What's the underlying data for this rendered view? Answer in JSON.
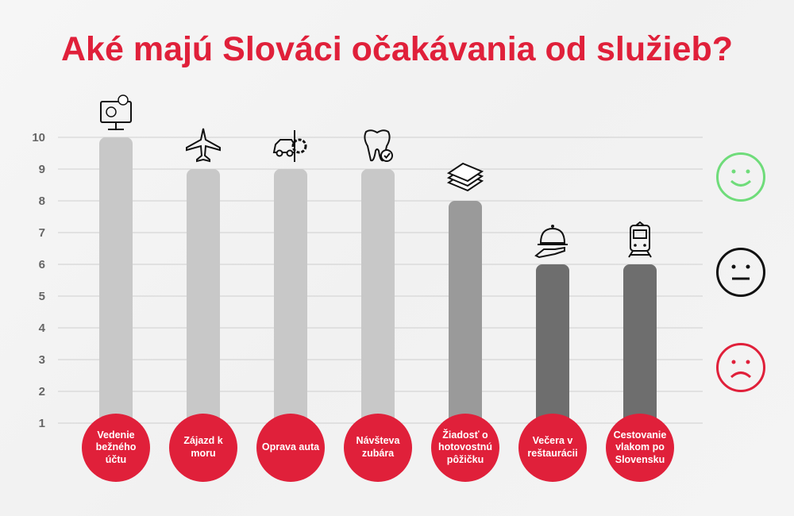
{
  "chart_data": {
    "type": "bar",
    "title": "Aké majú Slováci očakávania od služieb?",
    "categories": [
      "Vedenie bežného účtu",
      "Zájazd k moru",
      "Oprava auta",
      "Návšteva zubára",
      "Žiadosť o hotovostnú pôžičku",
      "Večera v reštaurácii",
      "Cestovanie vlakom po Slovensku"
    ],
    "values": [
      10,
      9,
      9,
      9,
      8,
      6,
      6
    ],
    "icons": [
      "computer-money-icon",
      "airplane-icon",
      "car-gear-icon",
      "tooth-check-icon",
      "money-stack-icon",
      "food-cloche-icon",
      "train-icon"
    ],
    "bar_colors": [
      "#c8c8c8",
      "#c8c8c8",
      "#c8c8c8",
      "#c8c8c8",
      "#9a9a9a",
      "#6e6e6e",
      "#6e6e6e"
    ],
    "yticks": [
      "1",
      "2",
      "3",
      "4",
      "5",
      "6",
      "7",
      "8",
      "9",
      "10"
    ],
    "ylim": [
      1,
      10
    ],
    "grid": true,
    "legend": [
      {
        "name": "happy-face",
        "color": "#6fdc7a"
      },
      {
        "name": "neutral-face",
        "color": "#111111"
      },
      {
        "name": "sad-face",
        "color": "#e0203a"
      }
    ]
  },
  "accent": "#e0203a"
}
